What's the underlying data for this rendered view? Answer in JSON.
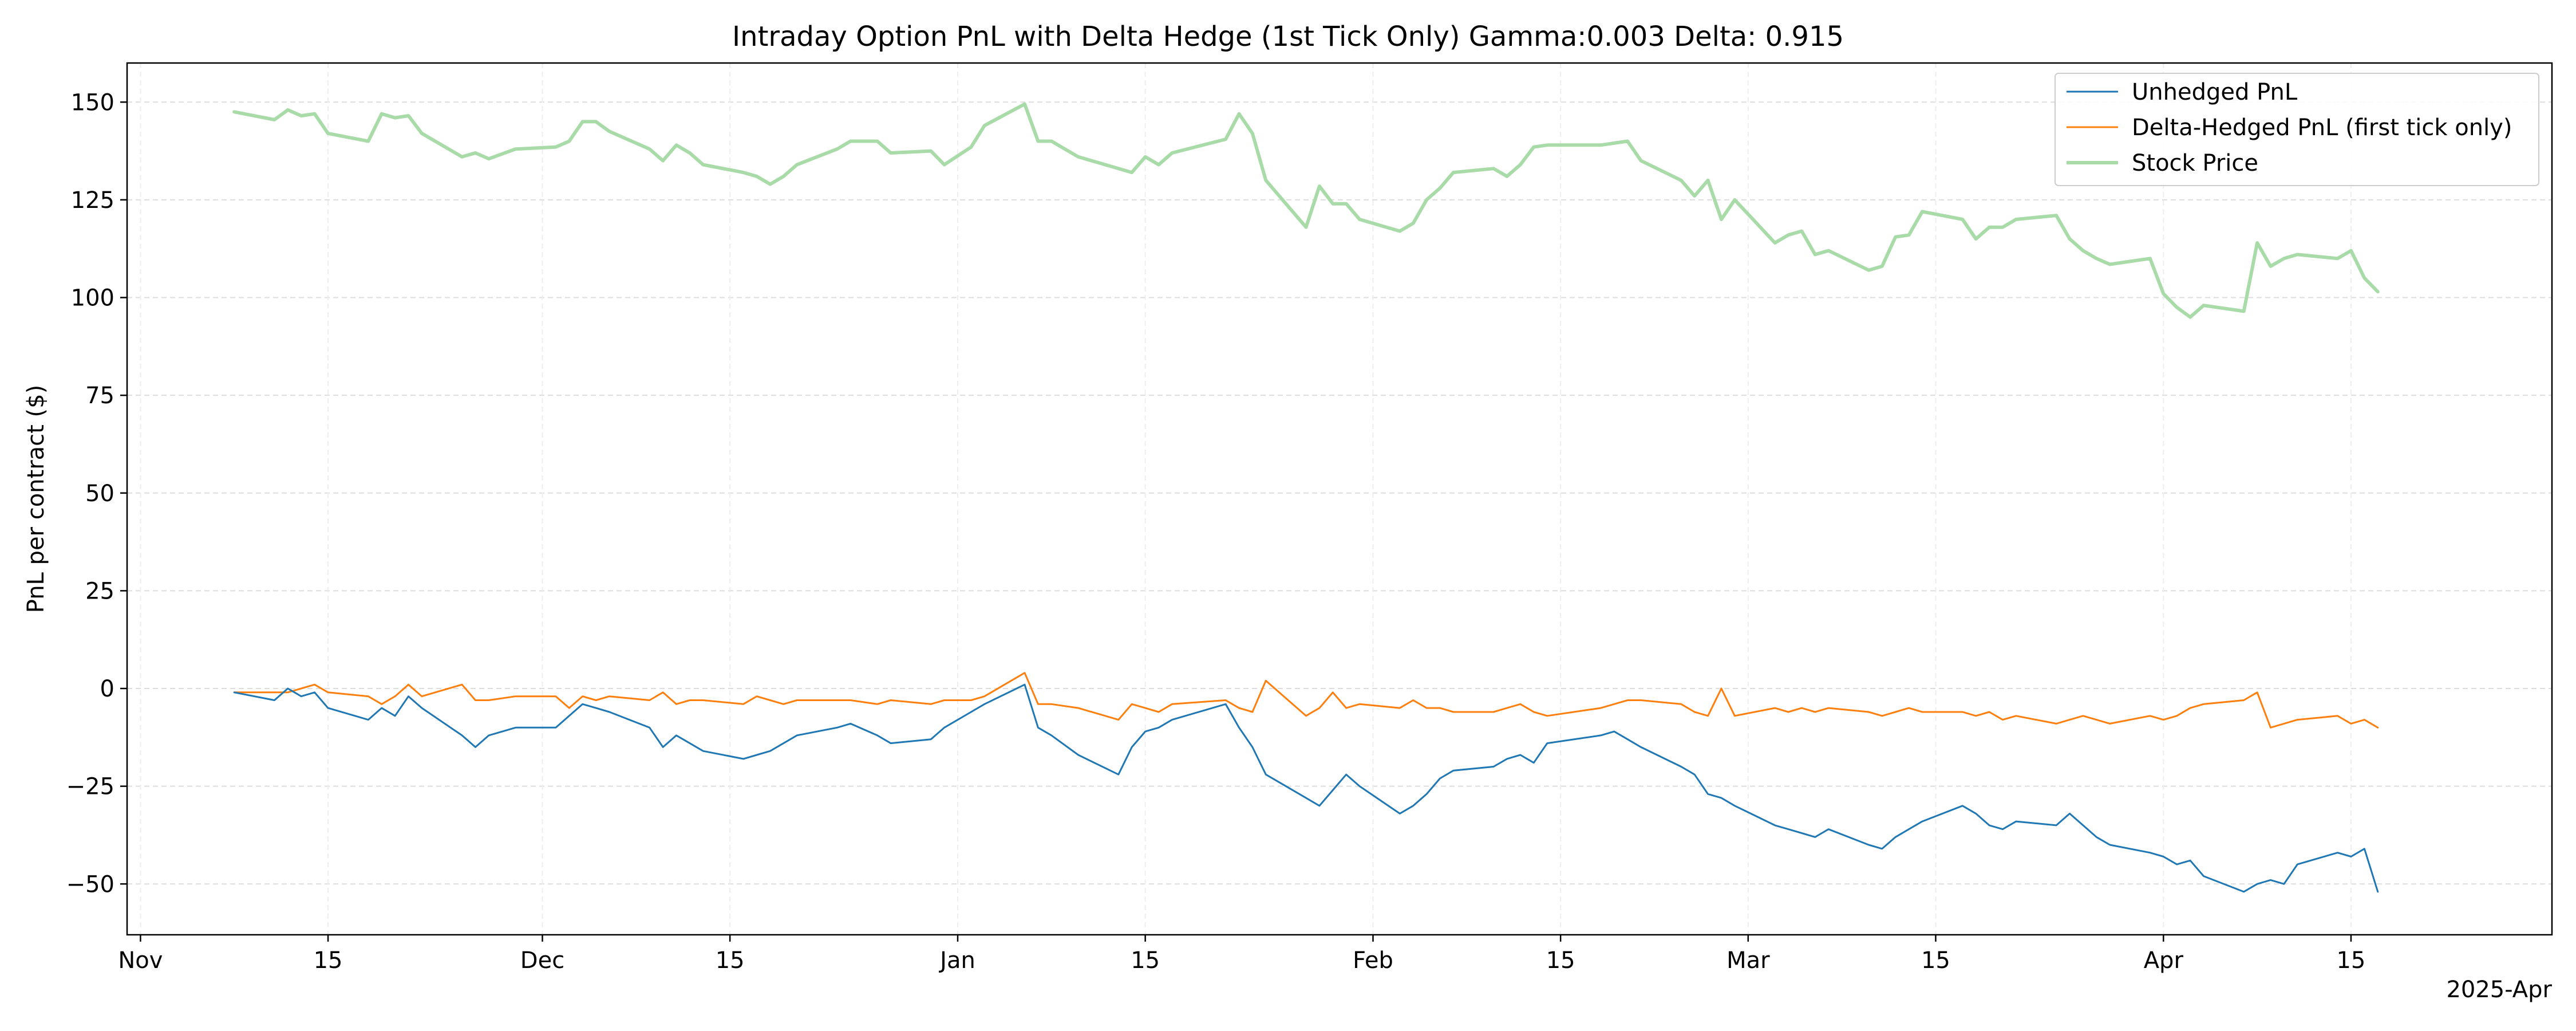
{
  "chart_data": {
    "type": "line",
    "title": "Intraday Option PnL with Delta Hedge (1st Tick Only) Gamma:0.003 Delta: 0.915",
    "ylabel": "PnL per contract ($)",
    "xlabel": "",
    "x_offset_label": "2025-Apr",
    "xlim": [
      "2024-10-31",
      "2025-04-30"
    ],
    "ylim": [
      -63,
      160
    ],
    "grid": true,
    "legend_position": "top-right",
    "x_ticks": [
      {
        "date": "2024-11-01",
        "label": "Nov"
      },
      {
        "date": "2024-11-15",
        "label": "15"
      },
      {
        "date": "2024-12-01",
        "label": "Dec"
      },
      {
        "date": "2024-12-15",
        "label": "15"
      },
      {
        "date": "2025-01-01",
        "label": "Jan"
      },
      {
        "date": "2025-01-15",
        "label": "15"
      },
      {
        "date": "2025-02-01",
        "label": "Feb"
      },
      {
        "date": "2025-02-15",
        "label": "15"
      },
      {
        "date": "2025-03-01",
        "label": "Mar"
      },
      {
        "date": "2025-03-15",
        "label": "15"
      },
      {
        "date": "2025-04-01",
        "label": "Apr"
      },
      {
        "date": "2025-04-15",
        "label": "15"
      }
    ],
    "y_ticks": [
      150,
      125,
      100,
      75,
      50,
      25,
      0,
      -25,
      -50
    ],
    "y_tick_labels": [
      "150",
      "125",
      "100",
      "75",
      "50",
      "25",
      "0",
      "−25",
      "−50"
    ],
    "series": [
      {
        "name": "Unhedged PnL",
        "color": "#1f77b4",
        "width": 1.5,
        "x": [
          "2024-11-08",
          "2024-11-11",
          "2024-11-12",
          "2024-11-13",
          "2024-11-14",
          "2024-11-15",
          "2024-11-18",
          "2024-11-19",
          "2024-11-20",
          "2024-11-21",
          "2024-11-22",
          "2024-11-25",
          "2024-11-26",
          "2024-11-27",
          "2024-11-29",
          "2024-12-02",
          "2024-12-03",
          "2024-12-04",
          "2024-12-05",
          "2024-12-06",
          "2024-12-09",
          "2024-12-10",
          "2024-12-11",
          "2024-12-12",
          "2024-12-13",
          "2024-12-16",
          "2024-12-17",
          "2024-12-18",
          "2024-12-19",
          "2024-12-20",
          "2024-12-23",
          "2024-12-24",
          "2024-12-26",
          "2024-12-27",
          "2024-12-30",
          "2024-12-31",
          "2025-01-02",
          "2025-01-03",
          "2025-01-06",
          "2025-01-07",
          "2025-01-08",
          "2025-01-10",
          "2025-01-13",
          "2025-01-14",
          "2025-01-15",
          "2025-01-16",
          "2025-01-17",
          "2025-01-21",
          "2025-01-22",
          "2025-01-23",
          "2025-01-24",
          "2025-01-27",
          "2025-01-28",
          "2025-01-29",
          "2025-01-30",
          "2025-01-31",
          "2025-02-03",
          "2025-02-04",
          "2025-02-05",
          "2025-02-06",
          "2025-02-07",
          "2025-02-10",
          "2025-02-11",
          "2025-02-12",
          "2025-02-13",
          "2025-02-14",
          "2025-02-18",
          "2025-02-19",
          "2025-02-20",
          "2025-02-21",
          "2025-02-24",
          "2025-02-25",
          "2025-02-26",
          "2025-02-27",
          "2025-02-28",
          "2025-03-03",
          "2025-03-04",
          "2025-03-05",
          "2025-03-06",
          "2025-03-07",
          "2025-03-10",
          "2025-03-11",
          "2025-03-12",
          "2025-03-13",
          "2025-03-14",
          "2025-03-17",
          "2025-03-18",
          "2025-03-19",
          "2025-03-20",
          "2025-03-21",
          "2025-03-24",
          "2025-03-25",
          "2025-03-26",
          "2025-03-27",
          "2025-03-28",
          "2025-03-31",
          "2025-04-01",
          "2025-04-02",
          "2025-04-03",
          "2025-04-04",
          "2025-04-07",
          "2025-04-08",
          "2025-04-09",
          "2025-04-10",
          "2025-04-11",
          "2025-04-14",
          "2025-04-15",
          "2025-04-16",
          "2025-04-17"
        ],
        "y": [
          -1,
          -3,
          0,
          -2,
          -1,
          -5,
          -8,
          -5,
          -7,
          -2,
          -5,
          -12,
          -15,
          -12,
          -10,
          -10,
          -7,
          -4,
          -5,
          -6,
          -10,
          -15,
          -12,
          -14,
          -16,
          -18,
          -17,
          -16,
          -14,
          -12,
          -10,
          -9,
          -12,
          -14,
          -13,
          -10,
          -6,
          -4,
          1,
          -10,
          -12,
          -17,
          -22,
          -15,
          -11,
          -10,
          -8,
          -4,
          -10,
          -15,
          -22,
          -28,
          -30,
          -26,
          -22,
          -25,
          -32,
          -30,
          -27,
          -23,
          -21,
          -20,
          -18,
          -17,
          -19,
          -14,
          -12,
          -11,
          -13,
          -15,
          -20,
          -22,
          -27,
          -28,
          -30,
          -35,
          -36,
          -37,
          -38,
          -36,
          -40,
          -41,
          -38,
          -36,
          -34,
          -30,
          -32,
          -35,
          -36,
          -34,
          -35,
          -32,
          -35,
          -38,
          -40,
          -42,
          -43,
          -45,
          -44,
          -48,
          -52,
          -50,
          -49,
          -50,
          -45,
          -42,
          -43,
          -41,
          -52
        ]
      },
      {
        "name": "Delta-Hedged PnL (first tick only)",
        "color": "#ff7f0e",
        "width": 1.5,
        "x": [
          "2024-11-08",
          "2024-11-11",
          "2024-11-12",
          "2024-11-13",
          "2024-11-14",
          "2024-11-15",
          "2024-11-18",
          "2024-11-19",
          "2024-11-20",
          "2024-11-21",
          "2024-11-22",
          "2024-11-25",
          "2024-11-26",
          "2024-11-27",
          "2024-11-29",
          "2024-12-02",
          "2024-12-03",
          "2024-12-04",
          "2024-12-05",
          "2024-12-06",
          "2024-12-09",
          "2024-12-10",
          "2024-12-11",
          "2024-12-12",
          "2024-12-13",
          "2024-12-16",
          "2024-12-17",
          "2024-12-18",
          "2024-12-19",
          "2024-12-20",
          "2024-12-23",
          "2024-12-24",
          "2024-12-26",
          "2024-12-27",
          "2024-12-30",
          "2024-12-31",
          "2025-01-02",
          "2025-01-03",
          "2025-01-06",
          "2025-01-07",
          "2025-01-08",
          "2025-01-10",
          "2025-01-13",
          "2025-01-14",
          "2025-01-15",
          "2025-01-16",
          "2025-01-17",
          "2025-01-21",
          "2025-01-22",
          "2025-01-23",
          "2025-01-24",
          "2025-01-27",
          "2025-01-28",
          "2025-01-29",
          "2025-01-30",
          "2025-01-31",
          "2025-02-03",
          "2025-02-04",
          "2025-02-05",
          "2025-02-06",
          "2025-02-07",
          "2025-02-10",
          "2025-02-11",
          "2025-02-12",
          "2025-02-13",
          "2025-02-14",
          "2025-02-18",
          "2025-02-19",
          "2025-02-20",
          "2025-02-21",
          "2025-02-24",
          "2025-02-25",
          "2025-02-26",
          "2025-02-27",
          "2025-02-28",
          "2025-03-03",
          "2025-03-04",
          "2025-03-05",
          "2025-03-06",
          "2025-03-07",
          "2025-03-10",
          "2025-03-11",
          "2025-03-12",
          "2025-03-13",
          "2025-03-14",
          "2025-03-17",
          "2025-03-18",
          "2025-03-19",
          "2025-03-20",
          "2025-03-21",
          "2025-03-24",
          "2025-03-25",
          "2025-03-26",
          "2025-03-27",
          "2025-03-28",
          "2025-03-31",
          "2025-04-01",
          "2025-04-02",
          "2025-04-03",
          "2025-04-04",
          "2025-04-07",
          "2025-04-08",
          "2025-04-09",
          "2025-04-10",
          "2025-04-11",
          "2025-04-14",
          "2025-04-15",
          "2025-04-16",
          "2025-04-17"
        ],
        "y": [
          -1,
          -1,
          -1,
          0,
          1,
          -1,
          -2,
          -4,
          -2,
          1,
          -2,
          1,
          -3,
          -3,
          -2,
          -2,
          -5,
          -2,
          -3,
          -2,
          -3,
          -1,
          -4,
          -3,
          -3,
          -4,
          -2,
          -3,
          -4,
          -3,
          -3,
          -3,
          -4,
          -3,
          -4,
          -3,
          -3,
          -2,
          4,
          -4,
          -4,
          -5,
          -8,
          -4,
          -5,
          -6,
          -4,
          -3,
          -5,
          -6,
          2,
          -7,
          -5,
          -1,
          -5,
          -4,
          -5,
          -3,
          -5,
          -5,
          -6,
          -6,
          -5,
          -4,
          -6,
          -7,
          -5,
          -4,
          -3,
          -3,
          -4,
          -6,
          -7,
          0,
          -7,
          -5,
          -6,
          -5,
          -6,
          -5,
          -6,
          -7,
          -6,
          -5,
          -6,
          -6,
          -7,
          -6,
          -8,
          -7,
          -9,
          -8,
          -7,
          -8,
          -9,
          -7,
          -8,
          -7,
          -5,
          -4,
          -3,
          -1,
          -10,
          -9,
          -8,
          -7,
          -9,
          -8,
          -10
        ]
      },
      {
        "name": "Stock Price",
        "color": "#a8dba8",
        "width": 3,
        "x": [
          "2024-11-08",
          "2024-11-11",
          "2024-11-12",
          "2024-11-13",
          "2024-11-14",
          "2024-11-15",
          "2024-11-18",
          "2024-11-19",
          "2024-11-20",
          "2024-11-21",
          "2024-11-22",
          "2024-11-25",
          "2024-11-26",
          "2024-11-27",
          "2024-11-29",
          "2024-12-02",
          "2024-12-03",
          "2024-12-04",
          "2024-12-05",
          "2024-12-06",
          "2024-12-09",
          "2024-12-10",
          "2024-12-11",
          "2024-12-12",
          "2024-12-13",
          "2024-12-16",
          "2024-12-17",
          "2024-12-18",
          "2024-12-19",
          "2024-12-20",
          "2024-12-23",
          "2024-12-24",
          "2024-12-26",
          "2024-12-27",
          "2024-12-30",
          "2024-12-31",
          "2025-01-02",
          "2025-01-03",
          "2025-01-06",
          "2025-01-07",
          "2025-01-08",
          "2025-01-10",
          "2025-01-13",
          "2025-01-14",
          "2025-01-15",
          "2025-01-16",
          "2025-01-17",
          "2025-01-21",
          "2025-01-22",
          "2025-01-23",
          "2025-01-24",
          "2025-01-27",
          "2025-01-28",
          "2025-01-29",
          "2025-01-30",
          "2025-01-31",
          "2025-02-03",
          "2025-02-04",
          "2025-02-05",
          "2025-02-06",
          "2025-02-07",
          "2025-02-10",
          "2025-02-11",
          "2025-02-12",
          "2025-02-13",
          "2025-02-14",
          "2025-02-18",
          "2025-02-19",
          "2025-02-20",
          "2025-02-21",
          "2025-02-24",
          "2025-02-25",
          "2025-02-26",
          "2025-02-27",
          "2025-02-28",
          "2025-03-03",
          "2025-03-04",
          "2025-03-05",
          "2025-03-06",
          "2025-03-07",
          "2025-03-10",
          "2025-03-11",
          "2025-03-12",
          "2025-03-13",
          "2025-03-14",
          "2025-03-17",
          "2025-03-18",
          "2025-03-19",
          "2025-03-20",
          "2025-03-21",
          "2025-03-24",
          "2025-03-25",
          "2025-03-26",
          "2025-03-27",
          "2025-03-28",
          "2025-03-31",
          "2025-04-01",
          "2025-04-02",
          "2025-04-03",
          "2025-04-04",
          "2025-04-07",
          "2025-04-08",
          "2025-04-09",
          "2025-04-10",
          "2025-04-11",
          "2025-04-14",
          "2025-04-15",
          "2025-04-16",
          "2025-04-17"
        ],
        "y": [
          147.5,
          145.5,
          148,
          146.5,
          147,
          142,
          140,
          147,
          146,
          146.5,
          142,
          136,
          137,
          135.5,
          138,
          138.5,
          140,
          145,
          145,
          142.5,
          138,
          135,
          139,
          137,
          134,
          132,
          131,
          129,
          131,
          134,
          138,
          140,
          140,
          137,
          137.5,
          134,
          138.5,
          144,
          149.5,
          140,
          140,
          136,
          133,
          132,
          136,
          134,
          137,
          140.5,
          147,
          142,
          130,
          118,
          128.5,
          124,
          124,
          120,
          117,
          119,
          125,
          128,
          132,
          133,
          131,
          134,
          138.5,
          139,
          139,
          139.5,
          140,
          135,
          130,
          126,
          130,
          120,
          125,
          114,
          116,
          117,
          111,
          112,
          107,
          108,
          115.5,
          116,
          122,
          120,
          115,
          118,
          118,
          120,
          121,
          115,
          112,
          110,
          108.5,
          110,
          101,
          97.5,
          95,
          98,
          96.5,
          114,
          108,
          110,
          111,
          110,
          112,
          105,
          101.5
        ]
      }
    ]
  }
}
